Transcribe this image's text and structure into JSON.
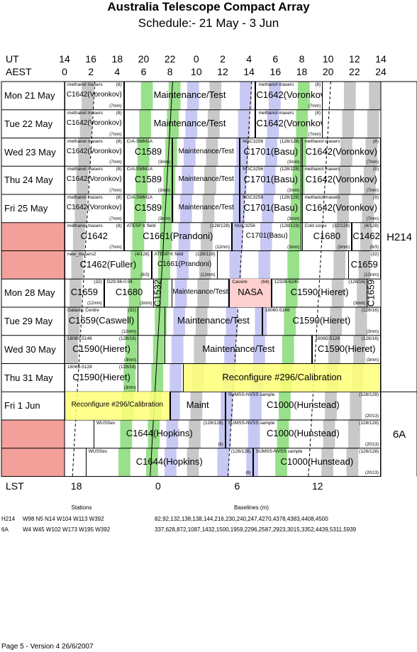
{
  "title": "Australia Telescope Compact Array",
  "subtitle": "Schedule:- 21 May - 3  Jun",
  "axis": {
    "ut_label": "UT",
    "aest_label": "AEST",
    "lst_label": "LST",
    "ut_ticks": [
      "14",
      "16",
      "18",
      "20",
      "22",
      "0",
      "2",
      "4",
      "6",
      "8",
      "10",
      "12",
      "14"
    ],
    "aest_ticks": [
      "0",
      "2",
      "4",
      "6",
      "8",
      "10",
      "12",
      "14",
      "16",
      "18",
      "20",
      "22",
      "24"
    ],
    "lst_ticks": [
      "18",
      "0",
      "6",
      "12"
    ]
  },
  "days": [
    {
      "label": "Mon  21 May",
      "highlight": false
    },
    {
      "label": "Tue  22 May",
      "highlight": false
    },
    {
      "label": "Wed 23 May",
      "highlight": false
    },
    {
      "label": "Thu  24 May",
      "highlight": false
    },
    {
      "label": "Fri    25 May",
      "highlight": false
    },
    {
      "label": "Sat   26 May",
      "highlight": true
    },
    {
      "label": "Sun  27 May",
      "highlight": true
    },
    {
      "label": "Mon 28 May",
      "highlight": false
    },
    {
      "label": "Tue  29 May",
      "highlight": false
    },
    {
      "label": "Wed 30 May",
      "highlight": false
    },
    {
      "label": "Thu  31 May",
      "highlight": false
    },
    {
      "label": "Fri      1  Jun",
      "highlight": false
    },
    {
      "label": "Sat    2  Jun",
      "highlight": true
    },
    {
      "label": "Sun   3  Jun",
      "highlight": true
    }
  ],
  "configs": {
    "h214": "H214",
    "a6": "6A"
  },
  "projects": [
    [
      {
        "s": 0,
        "e": 4.5,
        "tag": "methanol masers",
        "num": "(8)",
        "main": "C1642(Voronkov)",
        "bot": "(7mm)",
        "small": true
      },
      {
        "s": 4.5,
        "e": 14.5,
        "tag": "",
        "num": "",
        "main": "Maintenance/Test",
        "bot": ""
      },
      {
        "s": 14.5,
        "e": 19.6,
        "tag": "methanol masers",
        "num": "(8)",
        "main": "C1642(Voronkov)",
        "bot": "(7mm)"
      }
    ],
    [
      {
        "s": 0,
        "e": 4.5,
        "tag": "methanol masers",
        "num": "(8)",
        "main": "C1642(Voronkov)",
        "bot": "(7mm)",
        "small": true
      },
      {
        "s": 4.5,
        "e": 14.5,
        "tag": "",
        "num": "",
        "main": "Maintenance/Test",
        "bot": ""
      },
      {
        "s": 14.5,
        "e": 19.6,
        "tag": "methanol masers",
        "num": "(8)",
        "main": "C1642(Voronkov)",
        "bot": "(7mm)"
      }
    ],
    [
      {
        "s": 0,
        "e": 4.5,
        "tag": "methanol masers",
        "num": "(8)",
        "main": "C1642(Voronkov)",
        "bot": "(7mm)",
        "small": true
      },
      {
        "s": 4.5,
        "e": 8.2,
        "tag": "CrA-SMM1A",
        "num": "",
        "main": "C1589",
        "bot": "(3mm)"
      },
      {
        "s": 8.2,
        "e": 13.3,
        "tag": "",
        "num": "",
        "main": "Maintenance/Test",
        "bot": "",
        "small": true
      },
      {
        "s": 13.3,
        "e": 18.0,
        "tag": "NGC3256",
        "num": "(128/128)",
        "main": "C1701(Basu)",
        "bot": "(3mm)"
      },
      {
        "s": 18.0,
        "e": 24.0,
        "tag": "methanol masers",
        "num": "(8)",
        "main": "C1642(Voronkov)",
        "bot": "(7mm)"
      }
    ],
    [
      {
        "s": 0,
        "e": 4.5,
        "tag": "methanol masers",
        "num": "(8)",
        "main": "C1642(Voronkov)",
        "bot": "(7mm)",
        "small": true
      },
      {
        "s": 4.5,
        "e": 8.2,
        "tag": "CrA-SMM1A",
        "num": "",
        "main": "C1589",
        "bot": "(3mm)"
      },
      {
        "s": 8.2,
        "e": 13.3,
        "tag": "",
        "num": "",
        "main": "Maintenance/Test",
        "bot": "",
        "small": true
      },
      {
        "s": 13.3,
        "e": 18.0,
        "tag": "NGC3256",
        "num": "(128/128)",
        "main": "C1701(Basu)",
        "bot": "(3mm)"
      },
      {
        "s": 18.0,
        "e": 24.0,
        "tag": "methanol masers",
        "num": "(8)",
        "main": "C1642(Voronkov)",
        "bot": "(7mm)"
      }
    ],
    [
      {
        "s": 0,
        "e": 4.5,
        "tag": "methanol masers",
        "num": "(8)",
        "main": "C1642(Voronkov)",
        "bot": "(7mm)",
        "small": true
      },
      {
        "s": 4.5,
        "e": 8.2,
        "tag": "CrA-SMM1A",
        "num": "",
        "main": "C1589",
        "bot": "(3mm)"
      },
      {
        "s": 8.2,
        "e": 13.3,
        "tag": "",
        "num": "",
        "main": "Maintenance/Test",
        "bot": "",
        "small": true
      },
      {
        "s": 13.3,
        "e": 18.0,
        "tag": "NGC3256",
        "num": "(128/128)",
        "main": "C1701(Basu)",
        "bot": "(3mm)"
      },
      {
        "s": 18.0,
        "e": 24.0,
        "tag": "methanol masers",
        "num": "(8)",
        "main": "C1642(Voronkov)",
        "bot": "(7mm)"
      }
    ],
    [
      {
        "s": 0,
        "e": 4.5,
        "tag": "methanol masers",
        "num": "(8)",
        "main": "C1642",
        "bot": "(7mm)"
      },
      {
        "s": 4.5,
        "e": 12.7,
        "tag": "ATESP K field",
        "num": "(128/128)",
        "main": "C1661(Prandoni)",
        "bot": "(12mm)"
      },
      {
        "s": 12.7,
        "e": 18.0,
        "tag": "NGC3256",
        "num": "(128/128)",
        "main": "C1701(Basu)",
        "bot": "(3mm)",
        "small": true
      },
      {
        "s": 18.0,
        "e": 21.8,
        "tag": "Cold cores",
        "num": "(32/128)",
        "main": "C1680",
        "bot": "(3mm)"
      },
      {
        "s": 21.8,
        "e": 24.0,
        "tag": "",
        "num": "(4/128)",
        "main": "C1462",
        "bot": "(6/3)"
      }
    ],
    [
      {
        "s": 0,
        "e": 6.6,
        "tag": "new_masers2",
        "num": "(4/128)",
        "main": "C1462(Fuller)",
        "bot": "(6/3)"
      },
      {
        "s": 6.6,
        "e": 11.6,
        "tag": "ATESP K field",
        "num": "(128/128)",
        "main": "C1661(Prandoni)",
        "bot": "(12mm)",
        "small": true
      },
      {
        "s": 21.5,
        "e": 24.0,
        "tag": "",
        "num": "(32)",
        "main": "C1659",
        "bot": "(12mm)"
      }
    ],
    [
      {
        "s": 0,
        "e": 3.0,
        "tag": "",
        "num": "(32)",
        "main": "C1659",
        "bot": "(12mm)"
      },
      {
        "s": 3.0,
        "e": 6.8,
        "tag": "G29.96-0.04",
        "num": "",
        "main": "C1680",
        "bot": "(3mm)"
      },
      {
        "s": 8.1,
        "e": 12.5,
        "tag": "",
        "num": "",
        "main": "Maintenance/Test",
        "bot": "",
        "small": true
      },
      {
        "s": 12.5,
        "e": 15.7,
        "tag": "Cassini",
        "num": "(64)",
        "main": "NASA",
        "bot": "",
        "pink": true
      },
      {
        "s": 15.7,
        "e": 23.0,
        "tag": "12326-6245",
        "num": "(128/16)",
        "main": "C1590(Hieret)",
        "bot": "(3mm)"
      }
    ],
    [
      {
        "s": 0,
        "e": 5.6,
        "tag": "Galactic Centre",
        "num": "(32)",
        "main": "C1659(Caswell)",
        "bot": "(12mm)"
      },
      {
        "s": 7.6,
        "e": 15.0,
        "tag": "",
        "num": "",
        "main": "Maintenance/Test",
        "bot": ""
      },
      {
        "s": 15.0,
        "e": 24.0,
        "tag": "16060-5146",
        "num": "(128/16)",
        "main": "C1590(Hieret)",
        "bot": "(3mm)"
      }
    ],
    [
      {
        "s": 0,
        "e": 5.6,
        "tag": "16060-5146",
        "num": "(128/16)",
        "main": "C1590(Hieret)",
        "bot": "(3mm)"
      },
      {
        "s": 7.6,
        "e": 18.8,
        "tag": "",
        "num": "",
        "main": "Maintenance/Test",
        "bot": ""
      },
      {
        "s": 18.8,
        "e": 24.0,
        "tag": "16065-5128",
        "num": "(128/16)",
        "main": "C1590(Hieret)",
        "bot": "(3mm)"
      }
    ],
    [
      {
        "s": 0,
        "e": 5.6,
        "tag": "16065-5128",
        "num": "(128/16)",
        "main": "C1590(Hieret)",
        "bot": "(3mm)"
      },
      {
        "s": 9.0,
        "e": 24.0,
        "tag": "",
        "num": "",
        "main": "Reconfigure #296/Calibration",
        "bot": "",
        "yellow": true
      }
    ],
    [
      {
        "s": 0,
        "e": 8.0,
        "tag": "",
        "num": "",
        "main": "Reconfigure #296/Calibration",
        "bot": "",
        "yellow": true,
        "small": true
      },
      {
        "s": 8.0,
        "e": 12.2,
        "tag": "",
        "num": "",
        "main": "Maint",
        "bot": ""
      },
      {
        "s": 12.2,
        "e": 24.0,
        "tag": "SUMSS-NVSS sample",
        "num": "(128/128)",
        "main": "C1000(Hunstead)",
        "bot": "(20/13)"
      }
    ],
    [
      {
        "s": 2.2,
        "e": 12.2,
        "tag": "WUSSes",
        "num": "(128/128)",
        "main": "C1644(Hopkins)",
        "bot": "(6)"
      },
      {
        "s": 12.2,
        "e": 24.0,
        "tag": "SUMSS-NVSS sample",
        "num": "(128/128)",
        "main": "C1000(Hunstead)",
        "bot": "(20/13)"
      }
    ],
    [
      {
        "s": 1.6,
        "e": 14.3,
        "tag": "WUSSes",
        "num": "(128/128)",
        "main": "C1644(Hopkins)",
        "bot": "(6)"
      },
      {
        "s": 14.3,
        "e": 24.0,
        "tag": "SUMSS-NVSS sample",
        "num": "(128/128)",
        "main": "C1000(Hunstead)",
        "bot": "(20/13)"
      }
    ]
  ],
  "vertical_labels": [
    {
      "text": "C1532"
    },
    {
      "text": "C1659"
    }
  ],
  "stations": {
    "header": "Stations",
    "baselines_header": "Baselines (m)",
    "rows": [
      {
        "name": "H214",
        "stations": "W98 N5 N14 W104 W113 W392",
        "baselines": "82,92,132,138,138,144,216,230,240,247,4270,4378,4383,4408,4500"
      },
      {
        "name": "6A",
        "stations": "W4 W45 W102 W173 W195 W392",
        "baselines": "337,628,872,1087,1432,1500,1959,2296,2587,2923,3015,3352,4439,5311,5939"
      }
    ]
  },
  "footer": "Page 5 - Version 4  26/6/2007",
  "colors": {
    "green": "#99e08a",
    "blue": "#c8c8f4",
    "grey": "#c8c8c8",
    "yellow": "#ffff99",
    "pink": "#f4a09a",
    "nasa": "#ffd0d0"
  }
}
